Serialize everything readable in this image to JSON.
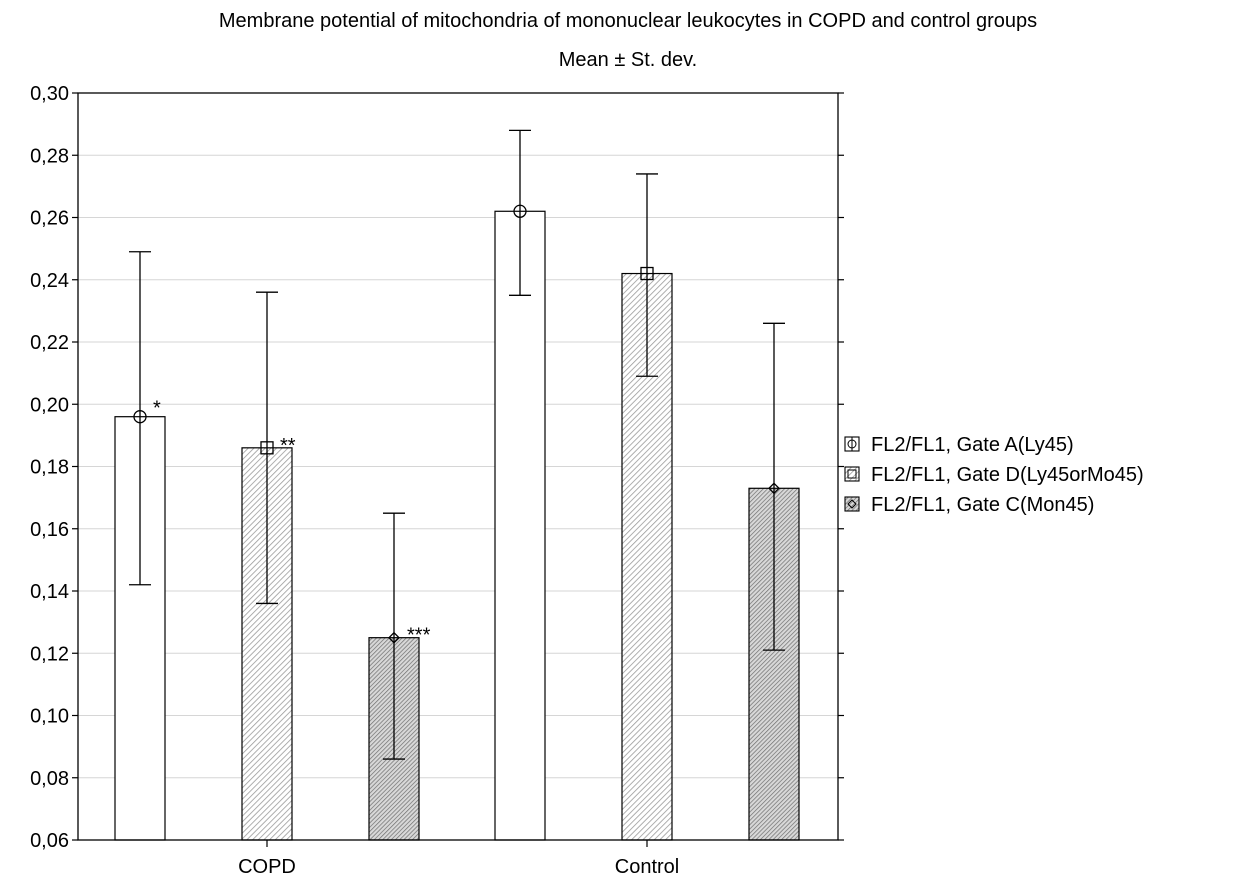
{
  "chart_data": {
    "type": "bar",
    "title": "Membrane potential of mitochondria of mononuclear leukocytes in COPD and control groups",
    "subtitle": "Mean ± St. dev.",
    "xlabel": "",
    "ylabel": "",
    "categories": [
      "COPD",
      "Control"
    ],
    "ylim": [
      0.06,
      0.3
    ],
    "yticks": [
      "0,06",
      "0,08",
      "0,10",
      "0,12",
      "0,14",
      "0,16",
      "0,18",
      "0,20",
      "0,22",
      "0,24",
      "0,26",
      "0,28",
      "0,30"
    ],
    "grid": true,
    "legend_position": "right",
    "series": [
      {
        "name": "FL2/FL1, Gate A(Ly45)",
        "marker": "circle",
        "fill": "white",
        "values": [
          0.196,
          0.262
        ],
        "err_low": [
          0.142,
          0.235
        ],
        "err_high": [
          0.249,
          0.288
        ],
        "annotations": [
          "*",
          ""
        ]
      },
      {
        "name": "FL2/FL1, Gate D(Ly45orMo45)",
        "marker": "square",
        "fill": "light-hatch",
        "values": [
          0.186,
          0.242
        ],
        "err_low": [
          0.136,
          0.209
        ],
        "err_high": [
          0.236,
          0.274
        ],
        "annotations": [
          "**",
          ""
        ]
      },
      {
        "name": "FL2/FL1, Gate C(Mon45)",
        "marker": "diamond",
        "fill": "dark-hatch",
        "values": [
          0.125,
          0.173
        ],
        "err_low": [
          0.086,
          0.121
        ],
        "err_high": [
          0.165,
          0.226
        ],
        "annotations": [
          "***",
          ""
        ]
      }
    ]
  }
}
